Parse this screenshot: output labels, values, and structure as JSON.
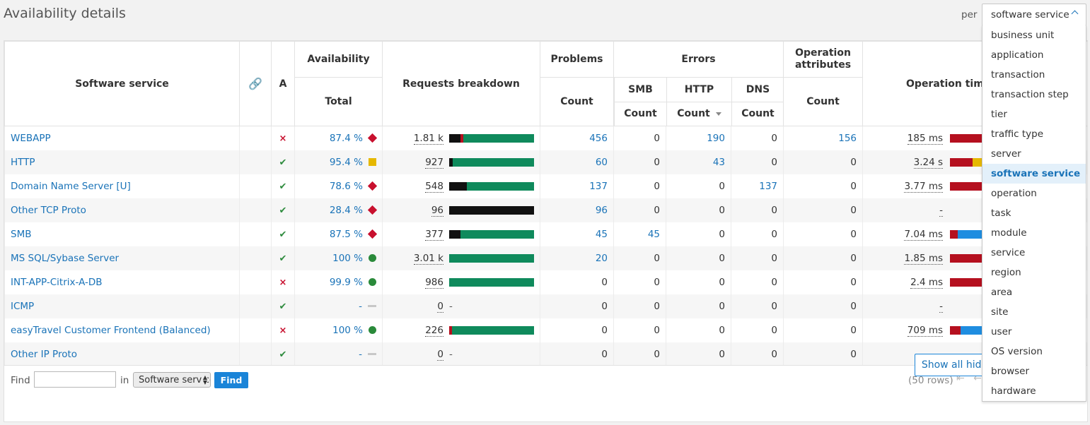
{
  "header": {
    "title": "Availability details",
    "per_label": "per",
    "per_selected": "software service"
  },
  "dropdown": {
    "options": [
      "business unit",
      "application",
      "transaction",
      "transaction step",
      "tier",
      "traffic type",
      "server",
      "software service",
      "operation",
      "task",
      "module",
      "service",
      "region",
      "area",
      "site",
      "user",
      "OS version",
      "browser",
      "hardware"
    ],
    "selected_index": 7
  },
  "table": {
    "headers": {
      "service": "Software service",
      "a": "A",
      "availability": "Availability",
      "availability_total": "Total",
      "requests": "Requests breakdown",
      "problems": "Problems",
      "problems_count": "Count",
      "errors": "Errors",
      "smb": "SMB",
      "http": "HTTP",
      "dns": "DNS",
      "smb_count": "Count",
      "http_count": "Count",
      "dns_count": "Count",
      "op_attr": "Operation attributes",
      "op_attr_count": "Count",
      "op_time": "Operation time"
    },
    "rows": [
      {
        "name": "WEBAPP",
        "status": "×",
        "avail": "87.4 %",
        "indicator": "diamond",
        "req": "1.81 k",
        "bar": [
          [
            "black",
            13
          ],
          [
            "red",
            4
          ],
          [
            "green",
            83
          ]
        ],
        "problems": "456",
        "smb": "0",
        "http": "190",
        "dns": "0",
        "opattr": "156",
        "optime": "185 ms",
        "opbar": [
          [
            "red",
            100
          ]
        ]
      },
      {
        "name": "HTTP",
        "status": "✔",
        "avail": "95.4 %",
        "indicator": "square",
        "req": "927",
        "bar": [
          [
            "black",
            4
          ],
          [
            "green",
            96
          ]
        ],
        "problems": "60",
        "smb": "0",
        "http": "43",
        "dns": "0",
        "opattr": "0",
        "optime": "3.24 s",
        "opbar": [
          [
            "red",
            53
          ],
          [
            "yellow",
            47
          ]
        ]
      },
      {
        "name": "Domain Name Server [U]",
        "status": "✔",
        "avail": "78.6 %",
        "indicator": "diamond",
        "req": "548",
        "bar": [
          [
            "black",
            21
          ],
          [
            "green",
            79
          ]
        ],
        "problems": "137",
        "smb": "0",
        "http": "0",
        "dns": "137",
        "opattr": "0",
        "optime": "3.77 ms",
        "opbar": [
          [
            "red",
            100
          ]
        ]
      },
      {
        "name": "Other TCP Proto",
        "status": "✔",
        "avail": "28.4 %",
        "indicator": "diamond",
        "req": "96",
        "bar": [
          [
            "black",
            100
          ]
        ],
        "problems": "96",
        "smb": "0",
        "http": "0",
        "dns": "0",
        "opattr": "0",
        "optime": "-",
        "opbar": []
      },
      {
        "name": "SMB",
        "status": "✔",
        "avail": "87.5 %",
        "indicator": "diamond",
        "req": "377",
        "bar": [
          [
            "black",
            13
          ],
          [
            "green",
            87
          ]
        ],
        "problems": "45",
        "smb": "45",
        "http": "0",
        "dns": "0",
        "opattr": "0",
        "optime": "7.04 ms",
        "opbar": [
          [
            "red",
            18
          ],
          [
            "blue",
            82
          ]
        ]
      },
      {
        "name": "MS SQL/Sybase Server",
        "status": "✔",
        "avail": "100 %",
        "indicator": "circle",
        "req": "3.01 k",
        "bar": [
          [
            "green",
            100
          ]
        ],
        "problems": "20",
        "smb": "0",
        "http": "0",
        "dns": "0",
        "opattr": "0",
        "optime": "1.85 ms",
        "opbar": [
          [
            "red",
            100
          ]
        ]
      },
      {
        "name": "INT-APP-Citrix-A-DB",
        "status": "×",
        "avail": "99.9 %",
        "indicator": "circle",
        "req": "986",
        "bar": [
          [
            "green",
            100
          ]
        ],
        "problems": "0",
        "smb": "0",
        "http": "0",
        "dns": "0",
        "opattr": "0",
        "optime": "2.4 ms",
        "opbar": [
          [
            "red",
            100
          ]
        ]
      },
      {
        "name": "ICMP",
        "status": "✔",
        "avail": "-",
        "indicator": "dash",
        "req": "0",
        "bar": [],
        "problems": "0",
        "smb": "0",
        "http": "0",
        "dns": "0",
        "opattr": "0",
        "optime": "-",
        "opbar": []
      },
      {
        "name": "easyTravel Customer Frontend (Balanced)",
        "status": "×",
        "avail": "100 %",
        "indicator": "circle",
        "req": "226",
        "bar": [
          [
            "red",
            3
          ],
          [
            "green",
            97
          ]
        ],
        "problems": "0",
        "smb": "0",
        "http": "0",
        "dns": "0",
        "opattr": "0",
        "optime": "709 ms",
        "opbar": [
          [
            "red",
            25
          ],
          [
            "blue",
            75
          ]
        ]
      },
      {
        "name": "Other IP Proto",
        "status": "✔",
        "avail": "-",
        "indicator": "dash",
        "req": "0",
        "bar": [],
        "problems": "0",
        "smb": "0",
        "http": "0",
        "dns": "0",
        "opattr": "0",
        "optime": "-",
        "opbar": []
      }
    ]
  },
  "footer": {
    "find_label": "Find",
    "find_value": "",
    "in_label": "in",
    "in_select_value": "Software service",
    "find_button": "Find",
    "rows_count": "(50 rows)",
    "pager": "⇤ ←",
    "show_hidden": "Show all hidden columns",
    "more": "···"
  },
  "colors": {
    "link": "#1a73b8",
    "green": "#0f8a5c",
    "red": "#b5101f",
    "black": "#111111",
    "yellow": "#e6b800",
    "blue": "#1f8de0"
  }
}
